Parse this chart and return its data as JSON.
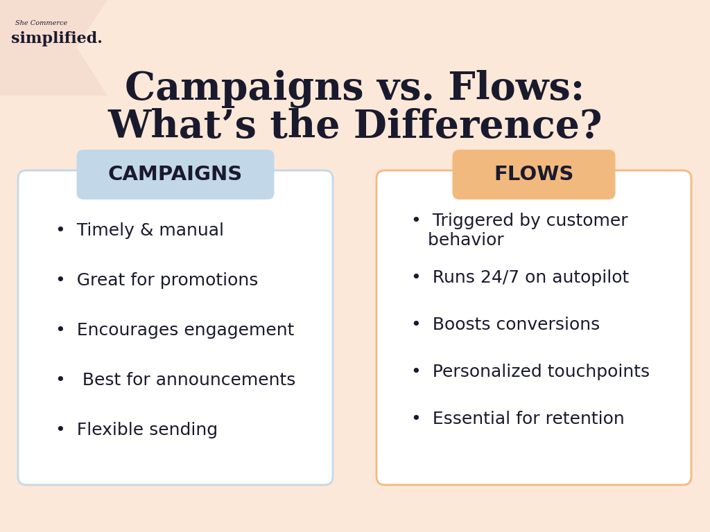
{
  "background_color": "#fce8d8",
  "title_line1": "Campaigns vs. Flows:",
  "title_line2": "What’s the Difference?",
  "title_color": "#1a1a2e",
  "title_fontsize": 40,
  "left_header": "CAMPAIGNS",
  "right_header": "FLOWS",
  "left_header_bg": "#c2d8e8",
  "right_header_bg": "#f2b97e",
  "header_text_color": "#1a1a2e",
  "header_fontsize": 21,
  "card_bg": "#ffffff",
  "card_border_color": "#c2d8e8",
  "card_border_color_right": "#f2b97e",
  "bullet_color": "#1a1a2e",
  "bullet_fontsize": 18,
  "left_bullets": [
    "Timely & manual",
    "Great for promotions",
    "Encourages engagement",
    " Best for announcements",
    "Flexible sending"
  ],
  "right_bullets": [
    "Triggered by customer\n   behavior",
    "Runs 24/7 on autopilot",
    "Boosts conversions",
    "Personalized touchpoints",
    "Essential for retention"
  ],
  "logo_small_text": "She Commerce",
  "logo_main_text": "simplified.",
  "logo_color": "#1a1a2e",
  "chevron_color": "#f5ddd0"
}
